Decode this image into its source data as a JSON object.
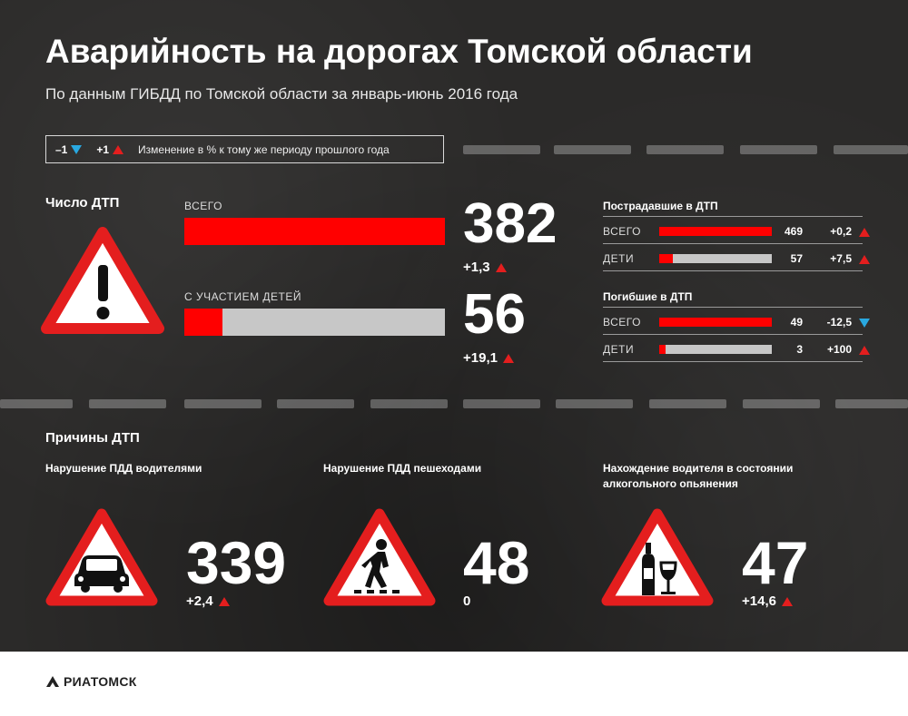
{
  "title": "Аварийность на дорогах Томской области",
  "subtitle": "По данным ГИБДД по Томской области за январь-июнь 2016 года",
  "legend": {
    "neg_label": "–1",
    "pos_label": "+1",
    "description": "Изменение в % к тому же периоду прошлого года"
  },
  "accidents": {
    "heading": "Число ДТП",
    "total": {
      "label": "ВСЕГО",
      "value": "382",
      "change": "+1,3",
      "share": 1.0
    },
    "children": {
      "label": "С УЧАСТИЕМ ДЕТЕЙ",
      "value": "56",
      "change": "+19,1",
      "share": 0.147
    }
  },
  "injured": {
    "heading": "Пострадавшие в ДТП",
    "rows": [
      {
        "label": "ВСЕГО",
        "value": "469",
        "change": "+0,2",
        "direction": "up",
        "share": 1.0
      },
      {
        "label": "ДЕТИ",
        "value": "57",
        "change": "+7,5",
        "direction": "up",
        "share": 0.12
      }
    ]
  },
  "killed": {
    "heading": "Погибшие в ДТП",
    "rows": [
      {
        "label": "ВСЕГО",
        "value": "49",
        "change": "-12,5",
        "direction": "down",
        "share": 1.0
      },
      {
        "label": "ДЕТИ",
        "value": "3",
        "change": "+100",
        "direction": "up",
        "share": 0.06
      }
    ]
  },
  "causes": {
    "heading": "Причины ДТП",
    "items": [
      {
        "label": "Нарушение ПДД водителями",
        "value": "339",
        "change": "+2,4",
        "icon": "car-icon"
      },
      {
        "label": "Нарушение ПДД пешеходами",
        "value": "48",
        "change": "0",
        "icon": "pedestrian-icon"
      },
      {
        "label": "Нахождение водителя в состоянии алкогольного опьянения",
        "value": "47",
        "change": "+14,6",
        "icon": "alcohol-icon"
      }
    ]
  },
  "brand": "РИАТОМСК",
  "colors": {
    "accent_red": "#ff0000",
    "down_blue": "#29a8e0",
    "bar_grey": "#c7c7c7",
    "background": "#2b2a29"
  }
}
